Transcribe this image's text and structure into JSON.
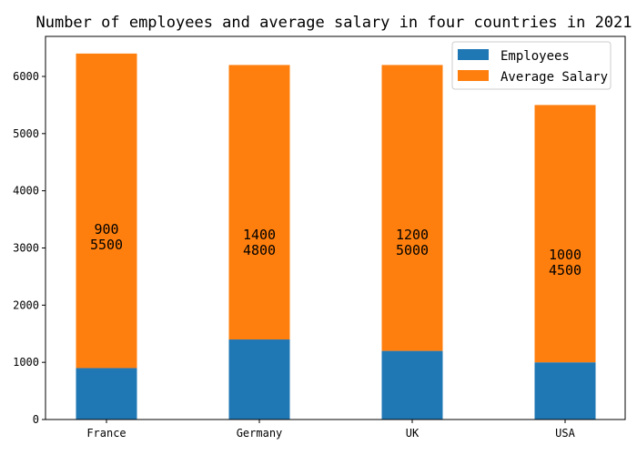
{
  "chart_data": {
    "type": "bar",
    "stacked": true,
    "title": "Number of employees and average salary in four countries in 2021",
    "xlabel": "",
    "ylabel": "",
    "categories": [
      "France",
      "Germany",
      "UK",
      "USA"
    ],
    "series": [
      {
        "name": "Employees",
        "values": [
          900,
          1400,
          1200,
          1000
        ],
        "color": "#1f77b4"
      },
      {
        "name": "Average Salary",
        "values": [
          5500,
          4800,
          5000,
          4500
        ],
        "color": "#ff7f0e"
      }
    ],
    "ylim": [
      0,
      6700
    ],
    "yticks": [
      0,
      1000,
      2000,
      3000,
      4000,
      5000,
      6000
    ],
    "grid": false,
    "legend_position": "top-right",
    "data_labels": [
      [
        "900",
        "5500"
      ],
      [
        "1400",
        "4800"
      ],
      [
        "1200",
        "5000"
      ],
      [
        "1000",
        "4500"
      ]
    ]
  }
}
